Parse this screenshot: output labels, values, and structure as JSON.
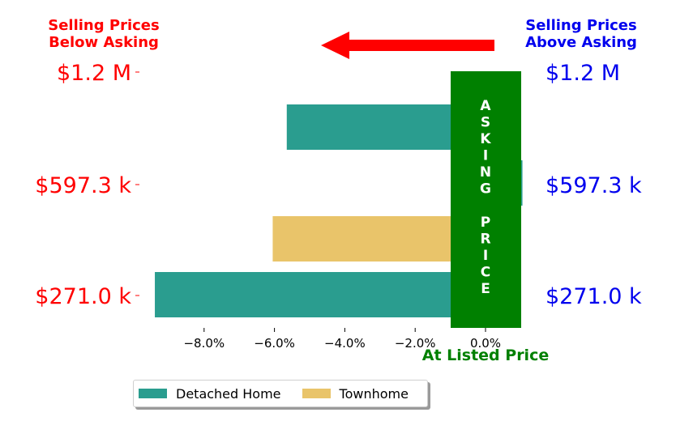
{
  "header": {
    "left_line1": "Selling Prices",
    "left_line2": "Below Asking",
    "right_line1": "Selling Prices",
    "right_line2": "Above Asking"
  },
  "colors": {
    "below": "#ff0000",
    "above": "#0000ee",
    "at": "#008000",
    "detached": "#2a9d8f",
    "townhome": "#e9c46a"
  },
  "chart_data": {
    "type": "bar",
    "orientation": "horizontal",
    "xlim": [
      -9.5,
      1.0
    ],
    "x_ticks": [
      -8.0,
      -6.0,
      -4.0,
      -2.0,
      0.0
    ],
    "x_tick_labels": [
      "−8.0%",
      "−6.0%",
      "−4.0%",
      "−2.0%",
      "0.0%"
    ],
    "xlabel": "At Listed Price",
    "y_labels_left": [
      "$1.2 M",
      "$597.3 k",
      "$271.0 k"
    ],
    "y_labels_right": [
      "$1.2 M",
      "$597.3 k",
      "$271.0 k"
    ],
    "legend_location": "below center",
    "series": [
      {
        "name": "Detached Home",
        "values": [
          -5.65,
          1.05,
          -9.4
        ]
      },
      {
        "name": "Townhome",
        "values": [
          null,
          -6.05,
          null
        ]
      }
    ],
    "asking_price_label": "ASKING PRICE"
  }
}
